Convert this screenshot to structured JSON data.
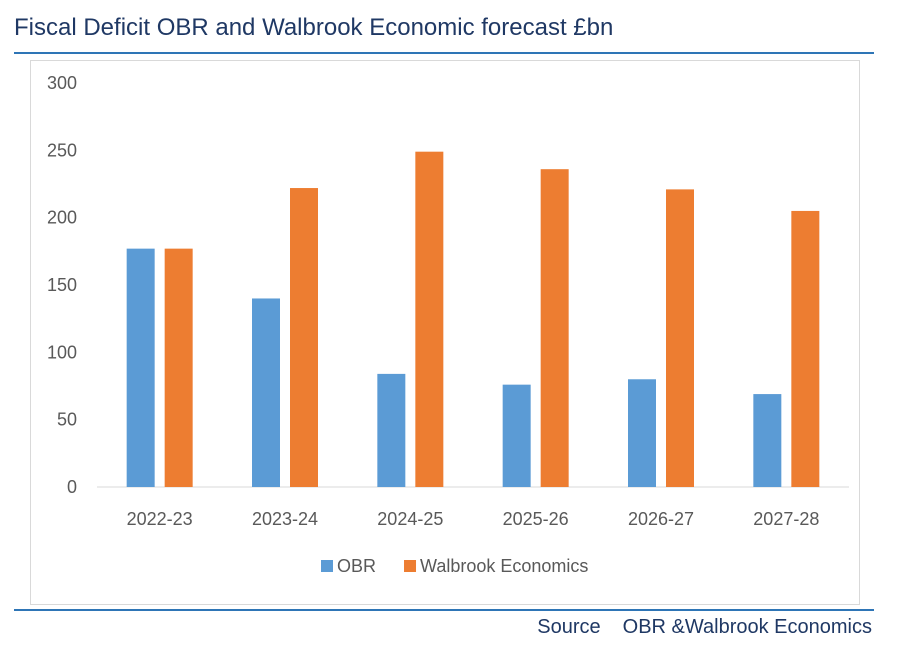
{
  "header": {
    "title": "Fiscal Deficit OBR and Walbrook Economic forecast £bn"
  },
  "footer": {
    "source_label": "Source",
    "source_text": "OBR &Walbrook Economics"
  },
  "colors": {
    "obr": "#5b9bd5",
    "walbrook": "#ed7d31",
    "title": "#1f3864",
    "rule": "#2e75b6",
    "axis_text": "#595959"
  },
  "chart_data": {
    "type": "bar",
    "categories": [
      "2022-23",
      "2023-24",
      "2024-25",
      "2025-26",
      "2026-27",
      "2027-28"
    ],
    "series": [
      {
        "name": "OBR",
        "values": [
          177,
          140,
          84,
          76,
          80,
          69
        ],
        "color": "#5b9bd5"
      },
      {
        "name": "Walbrook Economics",
        "values": [
          177,
          222,
          249,
          236,
          221,
          205
        ],
        "color": "#ed7d31"
      }
    ],
    "title": "Fiscal Deficit OBR and Walbrook Economic forecast £bn",
    "xlabel": "",
    "ylabel": "",
    "ylim": [
      0,
      300
    ],
    "yticks": [
      0,
      50,
      100,
      150,
      200,
      250,
      300
    ],
    "grid": false,
    "legend": "bottom"
  }
}
